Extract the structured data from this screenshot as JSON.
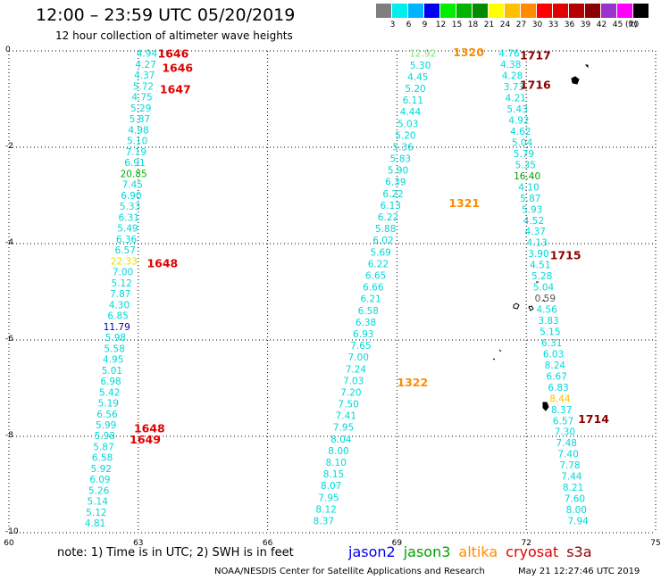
{
  "header": {
    "title": "12:00 – 23:59 UTC 05/20/2019",
    "subtitle": "12 hour collection of altimeter wave heights"
  },
  "scale": {
    "unit": "(ft)",
    "colors": [
      "#7f7f7f",
      "#00eeee",
      "#00b4ff",
      "#0000ee",
      "#00ee00",
      "#00b400",
      "#008b00",
      "#ffff00",
      "#ffc000",
      "#ff8c00",
      "#ff0000",
      "#e00000",
      "#b40000",
      "#8b0000",
      "#9a32cd",
      "#ff00ff",
      "#000000"
    ],
    "labels": [
      "3",
      "6",
      "9",
      "12",
      "15",
      "18",
      "21",
      "24",
      "27",
      "30",
      "33",
      "36",
      "39",
      "42",
      "45",
      "70"
    ]
  },
  "axes": {
    "x_ticks": [
      "60",
      "63",
      "66",
      "69",
      "72",
      "75"
    ],
    "y_ticks": [
      "0",
      "-2",
      "-4",
      "-6",
      "-8",
      "-10"
    ]
  },
  "chart_data": {
    "type": "scatter",
    "xlim": [
      60,
      75
    ],
    "ylim": [
      -10,
      0
    ],
    "grid": true,
    "tracks": [
      {
        "color": "#00d8d8",
        "x": 63.2,
        "x1": 62.0,
        "y0": -0.05,
        "y1": -9.8,
        "values": [
          "4.94",
          "4.27",
          "4.37",
          "5.72",
          "4.75",
          "5.29",
          "5.87",
          "4.98",
          "5.10",
          "7.19",
          "6.91",
          "20.85",
          "7.45",
          "6.90",
          "5.33",
          "6.31",
          "5.49",
          "6.36",
          "6.57",
          "22.33",
          "7.00",
          "5.12",
          "7.87",
          "4.30",
          "6.85",
          "11.79",
          "5.98",
          "5.58",
          "4.95",
          "5.01",
          "6.98",
          "5.42",
          "5.19",
          "6.56",
          "5.99",
          "5.98",
          "5.87",
          "6.58",
          "5.92",
          "6.09",
          "5.26",
          "5.14",
          "5.12",
          "4.81"
        ]
      },
      {
        "color": "#00d8d8",
        "x": 69.6,
        "x1": 67.3,
        "y0": -0.05,
        "y1": -9.75,
        "values": [
          "12.92",
          "5.30",
          "4.45",
          "5.20",
          "6.11",
          "4.44",
          "5.03",
          "5.20",
          "5.36",
          "5.83",
          "5.90",
          "6.39",
          "6.22",
          "6.13",
          "6.22",
          "5.88",
          "6.02",
          "5.69",
          "6.22",
          "6.65",
          "6.66",
          "6.21",
          "6.58",
          "6.38",
          "6.93",
          "7.65",
          "7.00",
          "7.24",
          "7.03",
          "7.20",
          "7.50",
          "7.41",
          "7.95",
          "8.04",
          "8.00",
          "8.10",
          "8.15",
          "8.07",
          "7.95",
          "8.12",
          "8.37"
        ]
      },
      {
        "color": "#00d8d8",
        "x": 71.6,
        "x1": 73.2,
        "y0": -0.05,
        "y1": -9.75,
        "values": [
          "4.76",
          "4.38",
          "4.28",
          "3.73",
          "4.21",
          "5.43",
          "4.92",
          "4.62",
          "5.04",
          "5.79",
          "5.35",
          "16.40",
          "4.10",
          "5.87",
          "5.93",
          "4.52",
          "4.37",
          "4.13",
          "3.90",
          "4.51",
          "5.28",
          "5.04",
          "0.59",
          "4.56",
          "3.83",
          "5.15",
          "6.31",
          "6.03",
          "8.24",
          "6.67",
          "6.83",
          "8.44",
          "8.37",
          "6.57",
          "7.30",
          "7.48",
          "7.40",
          "7.78",
          "7.44",
          "8.21",
          "7.60",
          "8.00",
          "7.94"
        ]
      }
    ],
    "passes": [
      {
        "label": "1646",
        "color": "#e00000",
        "x": 63.45,
        "y": -0.05
      },
      {
        "label": "1646",
        "color": "#e00000",
        "x": 63.55,
        "y": -0.34
      },
      {
        "label": "1647",
        "color": "#e00000",
        "x": 63.5,
        "y": -0.79
      },
      {
        "label": "1648",
        "color": "#e00000",
        "x": 63.2,
        "y": -4.4
      },
      {
        "label": "1648",
        "color": "#e00000",
        "x": 62.9,
        "y": -7.82
      },
      {
        "label": "1649",
        "color": "#e00000",
        "x": 62.8,
        "y": -8.06
      },
      {
        "label": "1320",
        "color": "#ff8c00",
        "x": 70.3,
        "y": -0.02
      },
      {
        "label": "1321",
        "color": "#ff8c00",
        "x": 70.2,
        "y": -3.15
      },
      {
        "label": "1322",
        "color": "#ff8c00",
        "x": 69.0,
        "y": -6.87
      },
      {
        "label": "1717",
        "color": "#8b0000",
        "x": 71.85,
        "y": -0.08
      },
      {
        "label": "1716",
        "color": "#8b0000",
        "x": 71.85,
        "y": -0.69
      },
      {
        "label": "1715",
        "color": "#8b0000",
        "x": 72.55,
        "y": -4.23
      },
      {
        "label": "1714",
        "color": "#8b0000",
        "x": 73.2,
        "y": -7.63
      }
    ]
  },
  "footer": {
    "note": "note:  1) Time is in UTC;  2) SWH is in feet",
    "legend": [
      {
        "name": "jason2",
        "color": "#0000ee"
      },
      {
        "name": "jason3",
        "color": "#00a000"
      },
      {
        "name": "altika",
        "color": "#ff8c00"
      },
      {
        "name": "cryosat",
        "color": "#e00000"
      },
      {
        "name": "s3a",
        "color": "#8b0000"
      }
    ],
    "credit": "NOAA/NESDIS Center for Satellite Applications and Research",
    "stamp": "May 21 12:27:46 UTC 2019"
  }
}
